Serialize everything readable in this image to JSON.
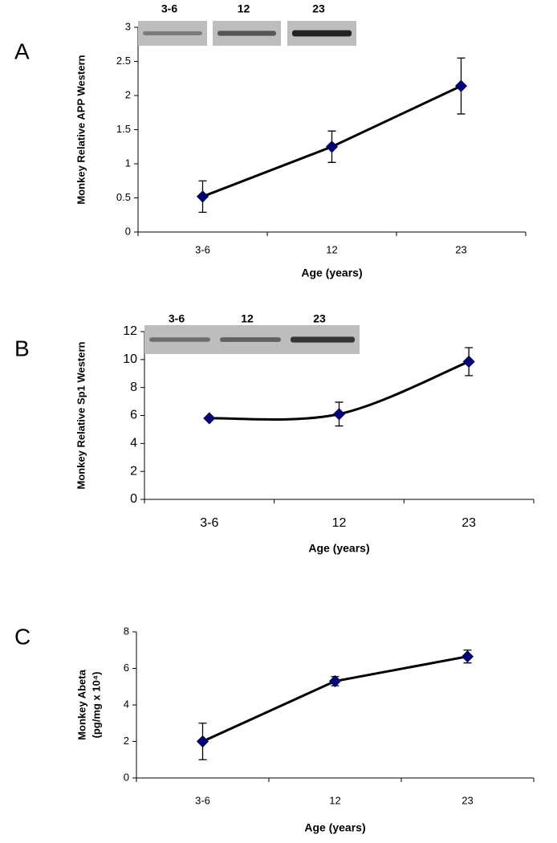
{
  "chart_data": [
    {
      "type": "line",
      "panel_label": "A",
      "ylabel": [
        "Monkey Relative APP Western"
      ],
      "xlabel": "Age (years)",
      "categories": [
        "3-6",
        "12",
        "23"
      ],
      "values": [
        0.52,
        1.25,
        2.14
      ],
      "errors": [
        0.23,
        0.23,
        0.41
      ],
      "color": "#000080",
      "ylim": [
        0,
        3
      ],
      "yticks": [
        0,
        0.5,
        1,
        1.5,
        2,
        2.5,
        3
      ],
      "blot_labels": [
        "3-6",
        "12",
        "23"
      ]
    },
    {
      "type": "line",
      "panel_label": "B",
      "ylabel": [
        "Monkey Relative Sp1 Western"
      ],
      "xlabel": "Age (years)",
      "categories": [
        "3-6",
        "12",
        "23"
      ],
      "values": [
        5.8,
        6.1,
        9.85
      ],
      "errors": [
        null,
        0.85,
        1.0
      ],
      "color": "#000080",
      "smooth": true,
      "ylim": [
        0,
        12
      ],
      "yticks": [
        0,
        2,
        4,
        6,
        8,
        10,
        12
      ],
      "blot_labels": [
        "3-6",
        "12",
        "23"
      ]
    },
    {
      "type": "line",
      "panel_label": "C",
      "ylabel": [
        "Monkey Abeta",
        "(pg/mg x 10⁴)"
      ],
      "xlabel": "Age (years)",
      "categories": [
        "3-6",
        "12",
        "23"
      ],
      "values": [
        2.0,
        5.3,
        6.65
      ],
      "errors": [
        1.0,
        0.25,
        0.35
      ],
      "color": "#000080",
      "ylim": [
        0,
        8
      ],
      "yticks": [
        0,
        2,
        4,
        6,
        8
      ]
    }
  ]
}
